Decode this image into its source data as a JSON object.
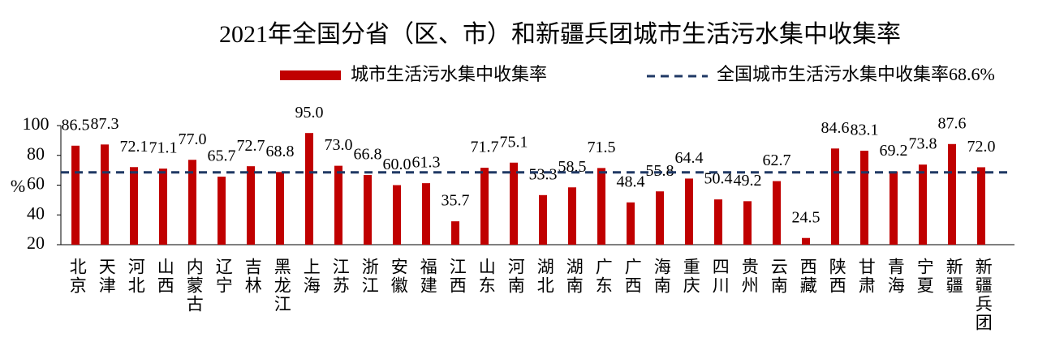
{
  "chart_data": {
    "type": "bar",
    "title": "2021年全国分省（区、市）和新疆兵团城市生活污水集中收集率",
    "y_label": "%",
    "categories": [
      "北京",
      "天津",
      "河北",
      "山西",
      "内蒙古",
      "辽宁",
      "吉林",
      "黑龙江",
      "上海",
      "江苏",
      "浙江",
      "安徽",
      "福建",
      "江西",
      "山东",
      "河南",
      "湖北",
      "湖南",
      "广东",
      "广西",
      "海南",
      "重庆",
      "四川",
      "贵州",
      "云南",
      "西藏",
      "陕西",
      "甘肃",
      "青海",
      "宁夏",
      "新疆",
      "新疆兵团"
    ],
    "series": [
      {
        "name": "城市生活污水集中收集率",
        "color": "#c00000",
        "values": [
          86.5,
          87.3,
          72.1,
          71.1,
          77.0,
          65.7,
          72.7,
          68.8,
          95.0,
          73.0,
          66.8,
          60.0,
          61.3,
          35.7,
          71.7,
          75.1,
          53.3,
          58.5,
          71.5,
          48.4,
          55.8,
          64.4,
          50.4,
          49.2,
          62.7,
          24.5,
          84.6,
          83.1,
          69.2,
          73.8,
          87.6,
          72.0
        ],
        "value_labels": [
          "86.5",
          "87.3",
          "72.1",
          "71.1",
          "77.0",
          "65.7",
          "72.7",
          "68.8",
          "95.0",
          "73.0",
          "66.8",
          "60.0",
          "61.3",
          "35.7",
          "71.7",
          "75.1",
          "53.3",
          "58.5",
          "71.5",
          "48.4",
          "55.8",
          "64.4",
          "50.4",
          "49.2",
          "62.7",
          "24.5",
          "84.6",
          "83.1",
          "69.2",
          "73.8",
          "87.6",
          "72.0"
        ]
      }
    ],
    "reference_line": {
      "name": "全国城市生活污水集中收集率68.6%",
      "value": 68.6,
      "color": "#1f3864"
    },
    "ylim": [
      20,
      100
    ],
    "yticks": [
      20,
      40,
      60,
      80,
      100
    ]
  }
}
